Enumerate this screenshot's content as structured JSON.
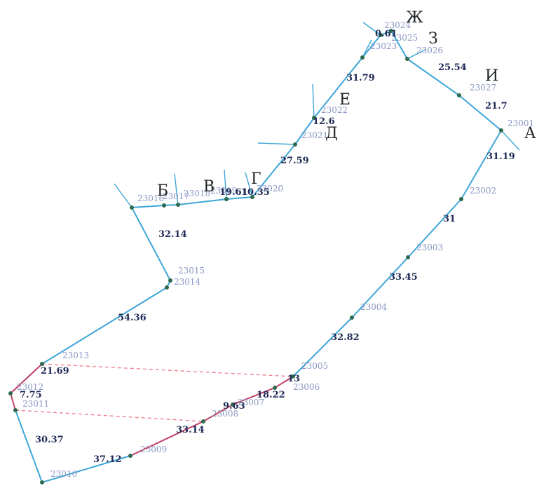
{
  "plan": {
    "points": [
      {
        "id": "23001",
        "label": "23001"
      },
      {
        "id": "23002",
        "label": "23002"
      },
      {
        "id": "23003",
        "label": "23003"
      },
      {
        "id": "23004",
        "label": "23004"
      },
      {
        "id": "23005",
        "label": "23005"
      },
      {
        "id": "23006",
        "label": "23006"
      },
      {
        "id": "23007",
        "label": "23007"
      },
      {
        "id": "23008",
        "label": "23008"
      },
      {
        "id": "23009",
        "label": "23009"
      },
      {
        "id": "23010",
        "label": "23010"
      },
      {
        "id": "23011",
        "label": "23011"
      },
      {
        "id": "23012",
        "label": "23012"
      },
      {
        "id": "23013",
        "label": "23013"
      },
      {
        "id": "23014",
        "label": "23014"
      },
      {
        "id": "23015",
        "label": "23015"
      },
      {
        "id": "23016",
        "label": "23016"
      },
      {
        "id": "23017",
        "label": "23017"
      },
      {
        "id": "23018",
        "label": "23018"
      },
      {
        "id": "23019",
        "label": "23019"
      },
      {
        "id": "23020",
        "label": "23020"
      },
      {
        "id": "23021",
        "label": "23021"
      },
      {
        "id": "23022",
        "label": "23022"
      },
      {
        "id": "23023",
        "label": "23023"
      },
      {
        "id": "23024",
        "label": "23024"
      },
      {
        "id": "23025",
        "label": "23025"
      },
      {
        "id": "23026",
        "label": "23026"
      },
      {
        "id": "23027",
        "label": "23027"
      }
    ],
    "distances": [
      {
        "label": "31.19"
      },
      {
        "label": "31"
      },
      {
        "label": "33.45"
      },
      {
        "label": "32.82"
      },
      {
        "label": "13"
      },
      {
        "label": "18.22"
      },
      {
        "label": "9.63"
      },
      {
        "label": "33.14"
      },
      {
        "label": "37.12"
      },
      {
        "label": "30.37"
      },
      {
        "label": "7.75"
      },
      {
        "label": "21.69"
      },
      {
        "label": "54.36"
      },
      {
        "label": "32.14"
      },
      {
        "label": "19.61"
      },
      {
        "label": "10.35"
      },
      {
        "label": "27.59"
      },
      {
        "label": "12.6"
      },
      {
        "label": "31.79"
      },
      {
        "label": "0.61"
      },
      {
        "label": "25.54"
      },
      {
        "label": "21.7"
      }
    ],
    "letters": [
      "А",
      "Б",
      "В",
      "Г",
      "Д",
      "Е",
      "Ж",
      "З",
      "И"
    ]
  }
}
